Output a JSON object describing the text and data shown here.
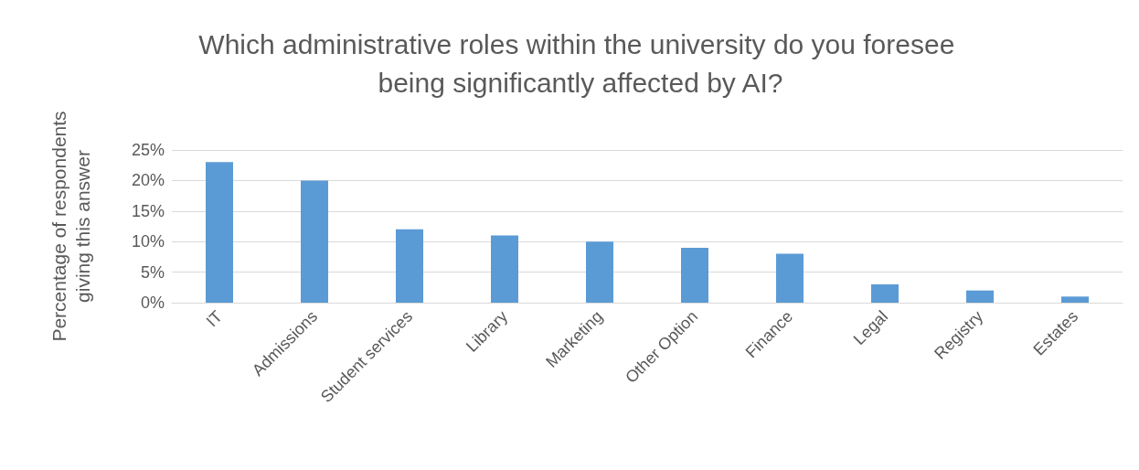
{
  "chart_data": {
    "type": "bar",
    "title": "Which administrative roles within the university do you foresee being significantly affected by AI?",
    "ylabel": "Percentage of respondents giving this answer",
    "categories": [
      "IT",
      "Admissions",
      "Student services",
      "Library",
      "Marketing",
      "Other Option",
      "Finance",
      "Legal",
      "Registry",
      "Estates"
    ],
    "values": [
      23,
      20,
      12,
      11,
      10,
      9,
      8,
      3,
      2,
      1
    ],
    "color": "#5b9bd5",
    "ylim": [
      0,
      25
    ],
    "yticks": [
      {
        "value": 0,
        "label": "0%"
      },
      {
        "value": 5,
        "label": "5%"
      },
      {
        "value": 10,
        "label": "10%"
      },
      {
        "value": 15,
        "label": "15%"
      },
      {
        "value": 20,
        "label": "20%"
      },
      {
        "value": 25,
        "label": "25%"
      }
    ],
    "grid": "y"
  }
}
